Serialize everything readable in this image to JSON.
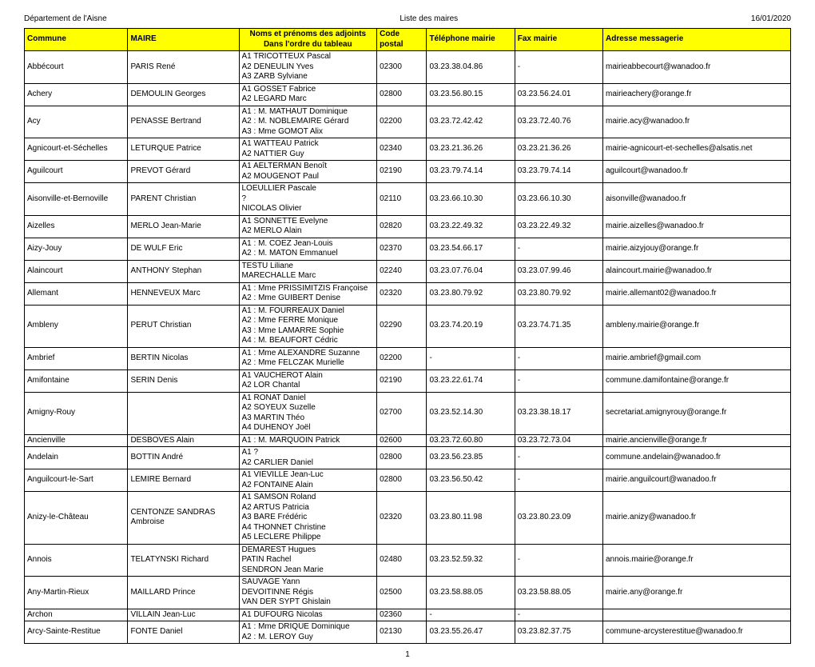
{
  "header": {
    "left": "Département de l'Aisne",
    "center": "Liste des maires",
    "right": "16/01/2020"
  },
  "columns": {
    "commune": "Commune",
    "maire": "MAIRE",
    "adjoints": "Noms et prénoms des adjoints\nDans l'ordre du tableau",
    "cp": "Code postal",
    "tel": "Téléphone mairie",
    "fax": "Fax mairie",
    "mail": "Adresse messagerie"
  },
  "rows": [
    {
      "commune": "Abbécourt",
      "maire": "PARIS René",
      "adjoints": [
        "A1 TRICOTTEUX Pascal",
        "A2 DENEULIN Yves",
        "A3 ZARB Sylviane"
      ],
      "cp": "02300",
      "tel": "03.23.38.04.86",
      "fax": "-",
      "mail": "mairieabbecourt@wanadoo.fr"
    },
    {
      "commune": "Achery",
      "maire": "DEMOULIN Georges",
      "adjoints": [
        "A1 GOSSET Fabrice",
        "A2 LEGARD Marc"
      ],
      "cp": "02800",
      "tel": "03.23.56.80.15",
      "fax": "03.23.56.24.01",
      "mail": "mairieachery@orange.fr"
    },
    {
      "commune": "Acy",
      "maire": "PENASSE Bertrand",
      "adjoints": [
        "A1 : M. MATHAUT Dominique",
        "A2 : M. NOBLEMAIRE Gérard",
        "A3 : Mme GOMOT Alix"
      ],
      "cp": "02200",
      "tel": "03.23.72.42.42",
      "fax": "03.23.72.40.76",
      "mail": "mairie.acy@wanadoo.fr"
    },
    {
      "commune": "Agnicourt-et-Séchelles",
      "maire": "LETURQUE Patrice",
      "adjoints": [
        "A1 WATTEAU Patrick",
        "A2 NATTIER Guy"
      ],
      "cp": "02340",
      "tel": "03.23.21.36.26",
      "fax": "03.23.21.36.26",
      "mail": "mairie-agnicourt-et-sechelles@alsatis.net"
    },
    {
      "commune": "Aguilcourt",
      "maire": "PREVOT Gérard",
      "adjoints": [
        "A1 AELTERMAN Benoît",
        "A2 MOUGENOT Paul"
      ],
      "cp": "02190",
      "tel": "03.23.79.74.14",
      "fax": "03.23.79.74.14",
      "mail": "aguilcourt@wanadoo.fr"
    },
    {
      "commune": "Aisonville-et-Bernoville",
      "maire": "PARENT Christian",
      "adjoints": [
        "LOEULLIER Pascale",
        "?",
        "NICOLAS Olivier"
      ],
      "cp": "02110",
      "tel": "03.23.66.10.30",
      "fax": "03.23.66.10.30",
      "mail": "aisonville@wanadoo.fr"
    },
    {
      "commune": "Aizelles",
      "maire": "MERLO Jean-Marie",
      "adjoints": [
        "A1 SONNETTE Evelyne",
        "A2 MERLO Alain"
      ],
      "cp": "02820",
      "tel": "03.23.22.49.32",
      "fax": "03.23.22.49.32",
      "mail": "mairie.aizelles@wanadoo.fr"
    },
    {
      "commune": "Aizy-Jouy",
      "maire": "DE WULF Eric",
      "adjoints": [
        "A1 : M. COEZ Jean-Louis",
        "A2 : M. MATON Emmanuel"
      ],
      "cp": "02370",
      "tel": "03.23.54.66.17",
      "fax": "-",
      "mail": "mairie.aizyjouy@orange.fr"
    },
    {
      "commune": "Alaincourt",
      "maire": "ANTHONY Stephan",
      "adjoints": [
        "TESTU Liliane",
        "MARECHALLE Marc"
      ],
      "cp": "02240",
      "tel": "03.23.07.76.04",
      "fax": "03.23.07.99.46",
      "mail": "alaincourt.mairie@wanadoo.fr"
    },
    {
      "commune": "Allemant",
      "maire": "HENNEVEUX Marc",
      "adjoints": [
        "A1 : Mme PRISSIMITZIS Françoise",
        "A2 : Mme GUIBERT Denise"
      ],
      "cp": "02320",
      "tel": "03.23.80.79.92",
      "fax": "03.23.80.79.92",
      "mail": "mairie.allemant02@wanadoo.fr"
    },
    {
      "commune": "Ambleny",
      "maire": "PERUT Christian",
      "adjoints": [
        "A1 : M. FOURREAUX Daniel",
        "A2 : Mme FERRE Monique",
        "A3 : Mme LAMARRE Sophie",
        "A4 : M. BEAUFORT Cédric"
      ],
      "cp": "02290",
      "tel": "03.23.74.20.19",
      "fax": "03.23.74.71.35",
      "mail": "ambleny.mairie@orange.fr"
    },
    {
      "commune": "Ambrief",
      "maire": "BERTIN Nicolas",
      "adjoints": [
        "A1 : Mme ALEXANDRE Suzanne",
        "A2 : Mme FELCZAK Murielle"
      ],
      "cp": "02200",
      "tel": "-",
      "fax": "-",
      "mail": "mairie.ambrief@gmail.com"
    },
    {
      "commune": "Amifontaine",
      "maire": "SERIN Denis",
      "adjoints": [
        "A1 VAUCHEROT Alain",
        "A2 LOR Chantal"
      ],
      "cp": "02190",
      "tel": "03.23.22.61.74",
      "fax": "-",
      "mail": "commune.damifontaine@orange.fr"
    },
    {
      "commune": "Amigny-Rouy",
      "maire": "",
      "adjoints": [
        "A1 RONAT Daniel",
        "A2 SOYEUX Suzelle",
        "A3 MARTIN Théo",
        "A4 DUHENOY Joël"
      ],
      "cp": "02700",
      "tel": "03.23.52.14.30",
      "fax": "03.23.38.18.17",
      "mail": "secretariat.amignyrouy@orange.fr"
    },
    {
      "commune": "Ancienville",
      "maire": "DESBOVES Alain",
      "adjoints": [
        "A1 : M. MARQUOIN Patrick"
      ],
      "cp": "02600",
      "tel": "03.23.72.60.80",
      "fax": "03.23.72.73.04",
      "mail": "mairie.ancienville@orange.fr"
    },
    {
      "commune": "Andelain",
      "maire": "BOTTIN André",
      "adjoints": [
        "A1 ?",
        "A2 CARLIER Daniel"
      ],
      "cp": "02800",
      "tel": "03.23.56.23.85",
      "fax": "-",
      "mail": "commune.andelain@wanadoo.fr"
    },
    {
      "commune": "Anguilcourt-le-Sart",
      "maire": "LEMIRE Bernard",
      "adjoints": [
        "A1 VIÉVILLE Jean-Luc",
        "A2 FONTAINE Alain"
      ],
      "cp": "02800",
      "tel": "03.23.56.50.42",
      "fax": "-",
      "mail": "mairie.anguilcourt@wanadoo.fr"
    },
    {
      "commune": "Anizy-le-Château",
      "maire": "CENTONZE SANDRAS Ambroise",
      "adjoints": [
        "A1 SAMSON Roland",
        "A2 ARTUS Patricia",
        "A3 BARE Frédéric",
        "A4 THONNET Christine",
        "A5 LECLERE Philippe"
      ],
      "cp": "02320",
      "tel": "03.23.80.11.98",
      "fax": "03.23.80.23.09",
      "mail": "mairie.anizy@wanadoo.fr"
    },
    {
      "commune": "Annois",
      "maire": "TELATYNSKI Richard",
      "adjoints": [
        "DEMAREST Hugues",
        "PATIN Rachel",
        "SENDRON Jean Marie"
      ],
      "cp": "02480",
      "tel": "03.23.52.59.32",
      "fax": "-",
      "mail": "annois.mairie@orange.fr"
    },
    {
      "commune": "Any-Martin-Rieux",
      "maire": "MAILLARD Prince",
      "adjoints": [
        "SAUVAGE Yann",
        "DEVOITINNE Régis",
        "VAN DER SYPT Ghislain"
      ],
      "cp": "02500",
      "tel": "03.23.58.88.05",
      "fax": "03.23.58.88.05",
      "mail": "mairie.any@orange.fr"
    },
    {
      "commune": "Archon",
      "maire": "VILLAIN Jean-Luc",
      "adjoints": [
        "A1 DUFOURG Nicolas"
      ],
      "cp": "02360",
      "tel": "-",
      "fax": "-",
      "mail": ""
    },
    {
      "commune": "Arcy-Sainte-Restitue",
      "maire": "FONTE Daniel",
      "adjoints": [
        "A1 : Mme DRIQUE Dominique",
        "A2 : M. LEROY Guy"
      ],
      "cp": "02130",
      "tel": "03.23.55.26.47",
      "fax": "03.23.82.37.75",
      "mail": "commune-arcysterestitue@wanadoo.fr"
    }
  ],
  "pageNumber": "1",
  "style": {
    "header_bg": "#ffff00",
    "border_color": "#000000",
    "page_bg": "#ffffff",
    "font_size_pt": 10
  }
}
